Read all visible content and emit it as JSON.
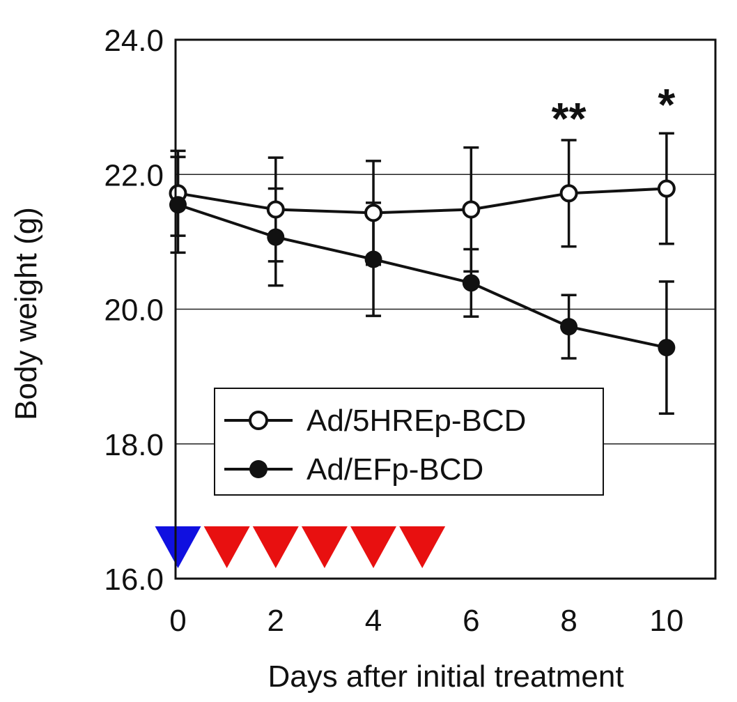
{
  "chart_data": {
    "type": "line",
    "xlabel": "Days after initial treatment",
    "ylabel": "Body weight (g)",
    "xlim": [
      -0.05,
      11
    ],
    "ylim": [
      16,
      24
    ],
    "x_ticks": [
      "0",
      "2",
      "4",
      "6",
      "8",
      "10"
    ],
    "y_ticks": [
      "16.0",
      "18.0",
      "20.0",
      "22.0",
      "24.0"
    ],
    "grid": "horizontal",
    "legend_position": "lower-left",
    "x": [
      0,
      2,
      4,
      6,
      8,
      10
    ],
    "series": [
      {
        "name": "Ad/5HREp-BCD",
        "marker": "open-circle",
        "values": [
          21.72,
          21.48,
          21.43,
          21.48,
          21.72,
          21.79
        ],
        "errors": [
          0.63,
          0.77,
          0.77,
          0.92,
          0.79,
          0.82
        ]
      },
      {
        "name": "Ad/EFp-BCD",
        "marker": "filled-circle",
        "values": [
          21.55,
          21.07,
          20.74,
          20.39,
          19.74,
          19.43
        ],
        "errors": [
          0.71,
          0.72,
          0.84,
          0.5,
          0.47,
          0.98
        ]
      }
    ],
    "annotations": [
      {
        "x": 8,
        "text": "**"
      },
      {
        "x": 10,
        "text": "*"
      }
    ],
    "treatment_markers": [
      {
        "day": 0,
        "color": "#1010e0"
      },
      {
        "day": 1,
        "color": "#e81010"
      },
      {
        "day": 2,
        "color": "#e81010"
      },
      {
        "day": 3,
        "color": "#e81010"
      },
      {
        "day": 4,
        "color": "#e81010"
      },
      {
        "day": 5,
        "color": "#e81010"
      }
    ]
  }
}
